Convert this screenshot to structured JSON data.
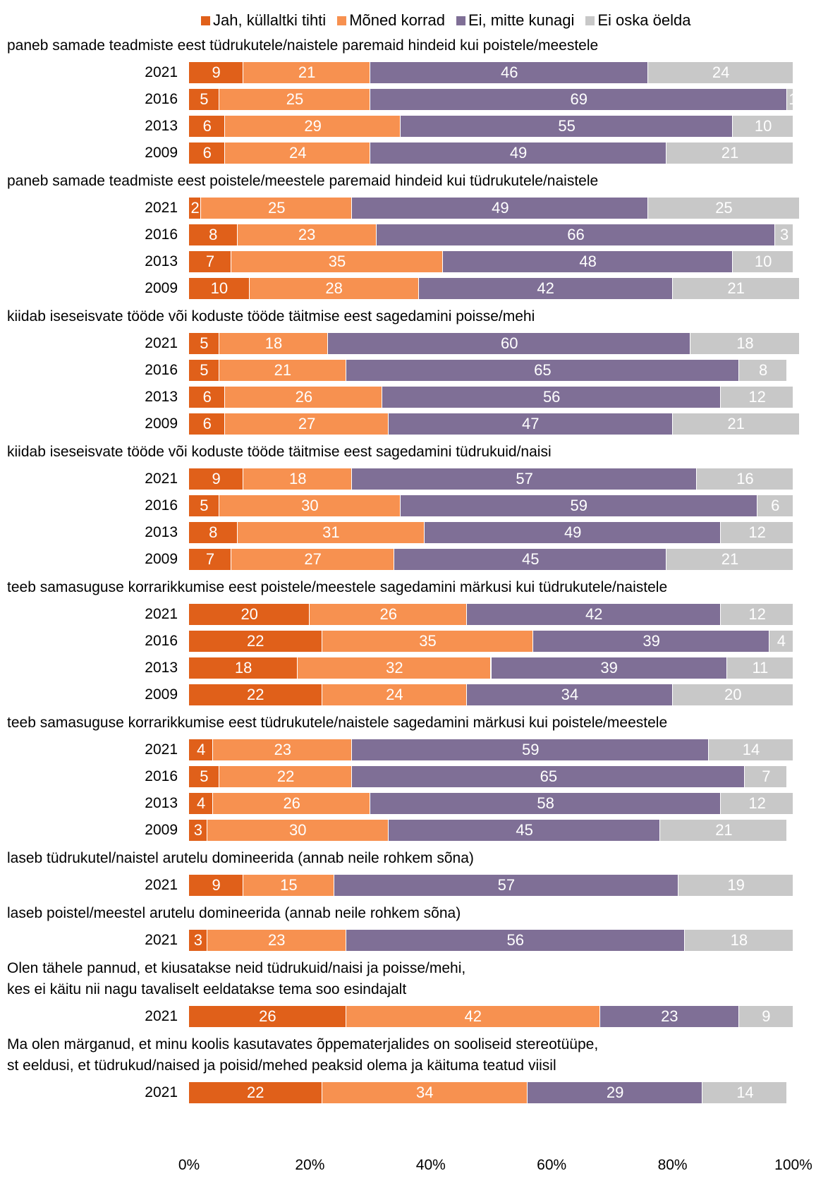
{
  "chart_data": {
    "type": "bar",
    "orientation": "horizontal",
    "stacked": "percent",
    "xlim": [
      0,
      100
    ],
    "x_ticks": [
      "0%",
      "20%",
      "40%",
      "60%",
      "80%",
      "100%"
    ],
    "legend_position": "top",
    "series": [
      {
        "name": "Jah, küllaltki tihti",
        "color": "#e0601a"
      },
      {
        "name": "Mõned korrad",
        "color": "#f79150"
      },
      {
        "name": "Ei, mitte kunagi",
        "color": "#7f6f96"
      },
      {
        "name": "Ei oska öelda",
        "color": "#c8c8c8"
      }
    ],
    "groups": [
      {
        "title": [
          "paneb samade teadmiste eest tüdrukutele/naistele paremaid hindeid kui poistele/meestele"
        ],
        "rows": [
          {
            "year": "2021",
            "values": [
              9,
              21,
              46,
              24
            ]
          },
          {
            "year": "2016",
            "values": [
              5,
              25,
              69,
              1
            ]
          },
          {
            "year": "2013",
            "values": [
              6,
              29,
              55,
              10
            ]
          },
          {
            "year": "2009",
            "values": [
              6,
              24,
              49,
              21
            ]
          }
        ]
      },
      {
        "title": [
          "paneb samade teadmiste eest poistele/meestele paremaid hindeid kui tüdrukutele/naistele"
        ],
        "rows": [
          {
            "year": "2021",
            "values": [
              2,
              25,
              49,
              25
            ]
          },
          {
            "year": "2016",
            "values": [
              8,
              23,
              66,
              3
            ]
          },
          {
            "year": "2013",
            "values": [
              7,
              35,
              48,
              10
            ]
          },
          {
            "year": "2009",
            "values": [
              10,
              28,
              42,
              21
            ]
          }
        ]
      },
      {
        "title": [
          "kiidab iseseisvate tööde või koduste tööde täitmise eest sagedamini poisse/mehi"
        ],
        "rows": [
          {
            "year": "2021",
            "values": [
              5,
              18,
              60,
              18
            ]
          },
          {
            "year": "2016",
            "values": [
              5,
              21,
              65,
              8
            ]
          },
          {
            "year": "2013",
            "values": [
              6,
              26,
              56,
              12
            ]
          },
          {
            "year": "2009",
            "values": [
              6,
              27,
              47,
              21
            ]
          }
        ]
      },
      {
        "title": [
          "kiidab iseseisvate tööde või koduste tööde täitmise eest sagedamini tüdrukuid/naisi"
        ],
        "rows": [
          {
            "year": "2021",
            "values": [
              9,
              18,
              57,
              16
            ]
          },
          {
            "year": "2016",
            "values": [
              5,
              30,
              59,
              6
            ]
          },
          {
            "year": "2013",
            "values": [
              8,
              31,
              49,
              12
            ]
          },
          {
            "year": "2009",
            "values": [
              7,
              27,
              45,
              21
            ]
          }
        ]
      },
      {
        "title": [
          "teeb samasuguse korrarikkumise eest poistele/meestele sagedamini märkusi kui tüdrukutele/naistele"
        ],
        "rows": [
          {
            "year": "2021",
            "values": [
              20,
              26,
              42,
              12
            ]
          },
          {
            "year": "2016",
            "values": [
              22,
              35,
              39,
              4
            ]
          },
          {
            "year": "2013",
            "values": [
              18,
              32,
              39,
              11
            ]
          },
          {
            "year": "2009",
            "values": [
              22,
              24,
              34,
              20
            ]
          }
        ]
      },
      {
        "title": [
          "teeb samasuguse korrarikkumise eest tüdrukutele/naistele sagedamini märkusi kui poistele/meestele"
        ],
        "rows": [
          {
            "year": "2021",
            "values": [
              4,
              23,
              59,
              14
            ]
          },
          {
            "year": "2016",
            "values": [
              5,
              22,
              65,
              7
            ]
          },
          {
            "year": "2013",
            "values": [
              4,
              26,
              58,
              12
            ]
          },
          {
            "year": "2009",
            "values": [
              3,
              30,
              45,
              21
            ]
          }
        ]
      },
      {
        "title": [
          "laseb tüdrukutel/naistel arutelu domineerida (annab neile rohkem sõna)"
        ],
        "rows": [
          {
            "year": "2021",
            "values": [
              9,
              15,
              57,
              19
            ]
          }
        ]
      },
      {
        "title": [
          "laseb poistel/meestel arutelu domineerida (annab neile rohkem sõna)"
        ],
        "rows": [
          {
            "year": "2021",
            "values": [
              3,
              23,
              56,
              18
            ]
          }
        ]
      },
      {
        "title": [
          "Olen tähele pannud, et kiusatakse neid tüdrukuid/naisi ja poisse/mehi,",
          "kes ei käitu nii nagu tavaliselt eeldatakse tema soo esindajalt"
        ],
        "rows": [
          {
            "year": "2021",
            "values": [
              26,
              42,
              23,
              9
            ]
          }
        ]
      },
      {
        "title": [
          "Ma olen märganud, et minu koolis kasutavates õppematerjalides on sooliseid stereotüüpe,",
          "st eeldusi, et tüdrukud/naised ja poisid/mehed peaksid olema ja käituma teatud viisil"
        ],
        "rows": [
          {
            "year": "2021",
            "values": [
              22,
              34,
              29,
              14
            ]
          }
        ]
      }
    ]
  }
}
